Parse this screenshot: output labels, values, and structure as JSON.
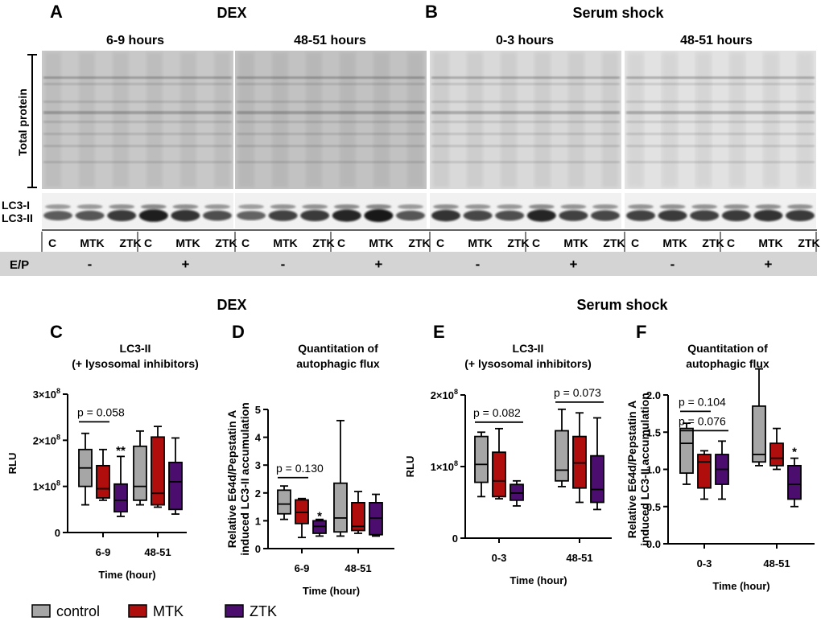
{
  "colors": {
    "control": "#a6a6a6",
    "MTK": "#b00d0d",
    "ZTK": "#4b0e6e",
    "blot_dark": "#2a2a2a",
    "ep_bar": "#d4d4d4"
  },
  "blot_panels": [
    {
      "letter": "A",
      "treatment": "DEX",
      "times": [
        "6-9 hours",
        "48-51 hours"
      ],
      "lane_labels": [
        "C",
        "MTK",
        "ZTK",
        "C",
        "MTK",
        "ZTK"
      ],
      "ep": [
        "-",
        "+"
      ],
      "lc3ii_intensity": [
        [
          0.5,
          0.55,
          0.75,
          0.95,
          0.8,
          0.6
        ],
        [
          0.45,
          0.7,
          0.75,
          0.9,
          1.0,
          0.55
        ]
      ]
    },
    {
      "letter": "B",
      "treatment": "Serum shock",
      "times": [
        "0-3 hours",
        "48-51 hours"
      ],
      "lane_labels": [
        "C",
        "MTK",
        "ZTK",
        "C",
        "MTK",
        "ZTK"
      ],
      "ep": [
        "-",
        "+"
      ],
      "lc3ii_intensity": [
        [
          0.8,
          0.65,
          0.6,
          0.9,
          0.7,
          0.65
        ],
        [
          0.7,
          0.75,
          0.7,
          0.75,
          0.8,
          0.75
        ]
      ]
    }
  ],
  "blot_labels": {
    "total_protein": "Total protein",
    "lc3_i": "LC3-I",
    "lc3_ii": "LC3-II",
    "ep": "E/P"
  },
  "section_titles": {
    "dex": "DEX",
    "serum": "Serum shock"
  },
  "legend": [
    "control",
    "MTK",
    "ZTK"
  ],
  "chart_data": [
    {
      "panel": "C",
      "type": "box",
      "title_lines": [
        "LC3-II",
        "(+ lysosomal inhibitors)"
      ],
      "ylabel": "RLU",
      "xlabel": "Time (hour)",
      "categories": [
        "6-9",
        "48-51"
      ],
      "ylim": [
        0,
        300000000.0
      ],
      "yticks": [
        {
          "v": 0,
          "base": "0",
          "exp": ""
        },
        {
          "v": 100000000.0,
          "base": "1×10",
          "exp": "8"
        },
        {
          "v": 200000000.0,
          "base": "2×10",
          "exp": "8"
        },
        {
          "v": 300000000.0,
          "base": "3×10",
          "exp": "8"
        }
      ],
      "series": [
        {
          "name": "control",
          "boxes": [
            [
              60000000.0,
              100000000.0,
              140000000.0,
              180000000.0,
              215000000.0
            ],
            [
              60000000.0,
              70000000.0,
              100000000.0,
              187000000.0,
              220000000.0
            ]
          ]
        },
        {
          "name": "MTK",
          "boxes": [
            [
              70000000.0,
              75000000.0,
              95000000.0,
              145000000.0,
              180000000.0
            ],
            [
              55000000.0,
              60000000.0,
              85000000.0,
              207000000.0,
              230000000.0
            ]
          ]
        },
        {
          "name": "ZTK",
          "boxes": [
            [
              35000000.0,
              45000000.0,
              70000000.0,
              105000000.0,
              165000000.0
            ],
            [
              40000000.0,
              50000000.0,
              110000000.0,
              152000000.0,
              205000000.0
            ]
          ]
        }
      ],
      "annotations": [
        {
          "type": "bracket",
          "cat": 0,
          "from": "control",
          "to": "MTK",
          "y": 240000000.0,
          "label": "p = 0.058"
        },
        {
          "type": "star",
          "cat": 0,
          "series": "ZTK",
          "y": 180000000.0,
          "label": "**"
        }
      ]
    },
    {
      "panel": "D",
      "type": "box",
      "title_lines": [
        "Quantitation of",
        "autophagic flux"
      ],
      "ylabel_lines": [
        "Relative E64d/Pepstatin A",
        "induced LC3-II accumulation"
      ],
      "xlabel": "Time (hour)",
      "categories": [
        "6-9",
        "48-51"
      ],
      "ylim": [
        0,
        5
      ],
      "yticks": [
        {
          "v": 0,
          "base": "0",
          "exp": ""
        },
        {
          "v": 1,
          "base": "1",
          "exp": ""
        },
        {
          "v": 2,
          "base": "2",
          "exp": ""
        },
        {
          "v": 3,
          "base": "3",
          "exp": ""
        },
        {
          "v": 4,
          "base": "4",
          "exp": ""
        },
        {
          "v": 5,
          "base": "5",
          "exp": ""
        }
      ],
      "series": [
        {
          "name": "control",
          "boxes": [
            [
              1.05,
              1.25,
              1.6,
              2.1,
              2.25
            ],
            [
              0.45,
              0.6,
              1.1,
              2.35,
              4.6
            ]
          ]
        },
        {
          "name": "MTK",
          "boxes": [
            [
              0.4,
              0.9,
              1.3,
              1.75,
              1.8
            ],
            [
              0.55,
              0.65,
              0.8,
              1.65,
              2.05
            ]
          ]
        },
        {
          "name": "ZTK",
          "boxes": [
            [
              0.45,
              0.55,
              0.8,
              1.0,
              1.05
            ],
            [
              0.45,
              0.5,
              1.1,
              1.65,
              1.95
            ]
          ]
        }
      ],
      "annotations": [
        {
          "type": "bracket",
          "cat": 0,
          "from": "control",
          "to": "MTK",
          "y": 2.55,
          "label": "p = 0.130"
        },
        {
          "type": "star",
          "cat": 0,
          "series": "ZTK",
          "y": 1.2,
          "label": "*"
        }
      ]
    },
    {
      "panel": "E",
      "type": "box",
      "title_lines": [
        "LC3-II",
        "(+ lysosomal inhibitors)"
      ],
      "ylabel": "RLU",
      "xlabel": "Time (hour)",
      "categories": [
        "0-3",
        "48-51"
      ],
      "ylim": [
        0,
        200000000.0
      ],
      "yticks": [
        {
          "v": 0,
          "base": "0",
          "exp": ""
        },
        {
          "v": 100000000.0,
          "base": "1×10",
          "exp": "8"
        },
        {
          "v": 200000000.0,
          "base": "2×10",
          "exp": "8"
        }
      ],
      "series": [
        {
          "name": "control",
          "boxes": [
            [
              58000000.0,
              78000000.0,
              103000000.0,
              142000000.0,
              148000000.0
            ],
            [
              72000000.0,
              80000000.0,
              95000000.0,
              150000000.0,
              180000000.0
            ]
          ]
        },
        {
          "name": "MTK",
          "boxes": [
            [
              55000000.0,
              58000000.0,
              80000000.0,
              120000000.0,
              153000000.0
            ],
            [
              50000000.0,
              70000000.0,
              105000000.0,
              142000000.0,
              175000000.0
            ]
          ]
        },
        {
          "name": "ZTK",
          "boxes": [
            [
              45000000.0,
              53000000.0,
              63000000.0,
              75000000.0,
              80000000.0
            ],
            [
              40000000.0,
              50000000.0,
              68000000.0,
              115000000.0,
              168000000.0
            ]
          ]
        }
      ],
      "annotations": [
        {
          "type": "bracket",
          "cat": 0,
          "from": "control",
          "to": "ZTK",
          "y": 162000000.0,
          "label": "p = 0.082"
        },
        {
          "type": "bracket",
          "cat": 1,
          "from": "control",
          "to": "ZTK",
          "y": 190000000.0,
          "label": "p = 0.073"
        }
      ]
    },
    {
      "panel": "F",
      "type": "box",
      "title_lines": [
        "Quantitation of",
        "autophagic flux"
      ],
      "ylabel_lines": [
        "Relative E64d/Pepstatin A",
        "induced LC3-II accumulation"
      ],
      "xlabel": "Time (hour)",
      "categories": [
        "0-3",
        "48-51"
      ],
      "ylim": [
        0,
        2.0
      ],
      "yticks": [
        {
          "v": 0,
          "base": "0.0",
          "exp": ""
        },
        {
          "v": 0.5,
          "base": "0.5",
          "exp": ""
        },
        {
          "v": 1.0,
          "base": "1.0",
          "exp": ""
        },
        {
          "v": 1.5,
          "base": "1.5",
          "exp": ""
        },
        {
          "v": 2.0,
          "base": "2.0",
          "exp": ""
        }
      ],
      "series": [
        {
          "name": "control",
          "boxes": [
            [
              0.8,
              0.95,
              1.35,
              1.55,
              1.62
            ],
            [
              1.05,
              1.1,
              1.2,
              1.85,
              2.35
            ]
          ]
        },
        {
          "name": "MTK",
          "boxes": [
            [
              0.6,
              0.75,
              1.1,
              1.2,
              1.25
            ],
            [
              1.0,
              1.05,
              1.15,
              1.35,
              1.55
            ]
          ]
        },
        {
          "name": "ZTK",
          "boxes": [
            [
              0.6,
              0.8,
              1.0,
              1.2,
              1.38
            ],
            [
              0.5,
              0.6,
              0.8,
              1.05,
              1.15
            ]
          ]
        }
      ],
      "annotations": [
        {
          "type": "bracket",
          "cat": 0,
          "from": "control",
          "to": "MTK",
          "y": 1.78,
          "label": "p = 0.104"
        },
        {
          "type": "bracket",
          "cat": 0,
          "from": "control",
          "to": "ZTK",
          "y": 1.52,
          "label": "p = 0.076"
        },
        {
          "type": "star",
          "cat": 1,
          "series": "ZTK",
          "y": 1.25,
          "label": "*"
        }
      ]
    }
  ]
}
